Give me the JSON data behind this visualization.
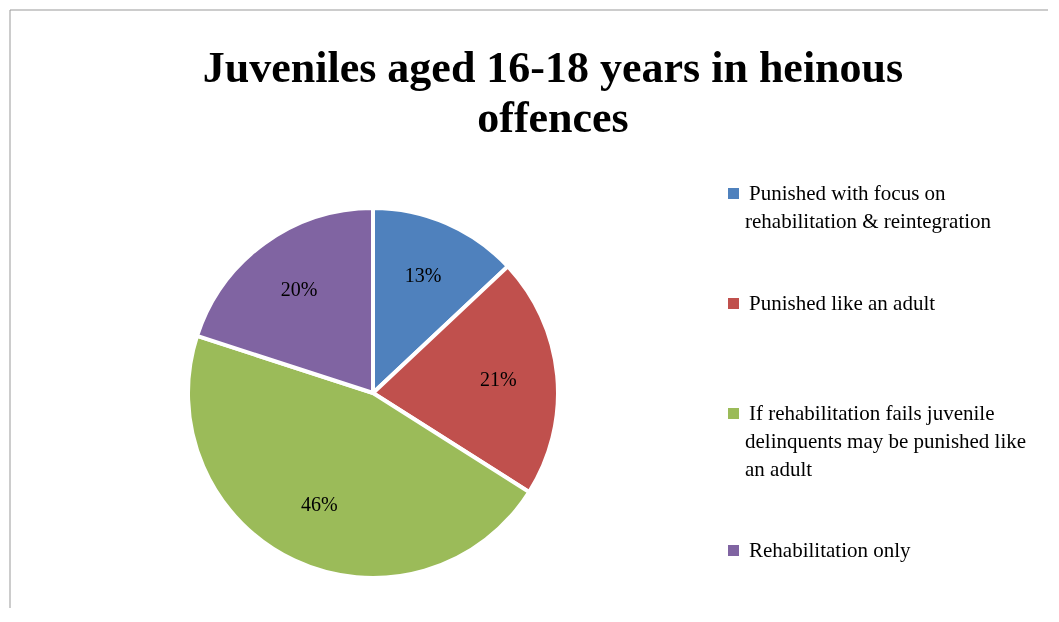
{
  "chart_data": {
    "type": "pie",
    "title": "Juveniles aged 16-18 years in heinous offences",
    "categories": [
      "Punished with focus on rehabilitation & reintegration",
      "Punished like an adult",
      "If rehabilitation fails juvenile delinquents may be punished like an adult",
      "Rehabilitation only"
    ],
    "values": [
      13,
      21,
      46,
      20
    ],
    "value_labels": [
      "13%",
      "21%",
      "46%",
      "20%"
    ],
    "data_labels": true,
    "colors": [
      "#4f81bd",
      "#c0504d",
      "#9bbb59",
      "#8064a2"
    ],
    "legend": "right"
  }
}
